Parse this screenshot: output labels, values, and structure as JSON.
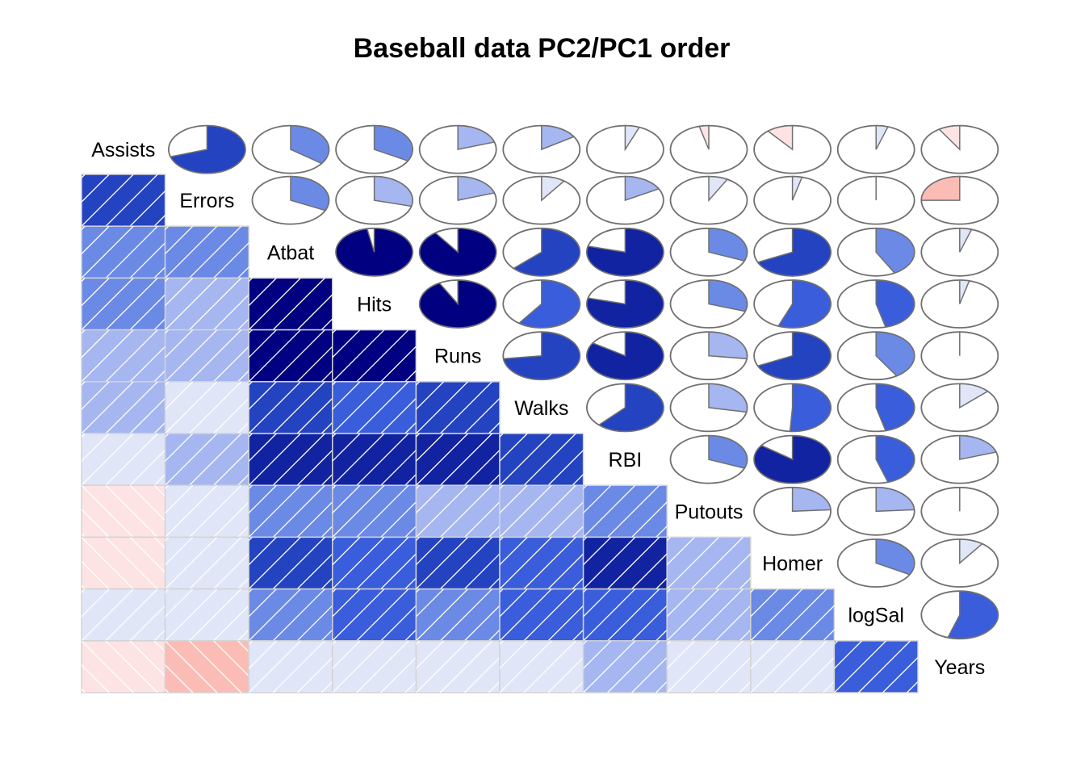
{
  "chart_data": {
    "type": "heatmap",
    "title": "Baseball data PC2/PC1 order",
    "variables": [
      "Assists",
      "Errors",
      "Atbat",
      "Hits",
      "Runs",
      "Walks",
      "RBI",
      "Putouts",
      "Homer",
      "logSal",
      "Years"
    ],
    "lower_panel": "shade",
    "upper_panel": "pie",
    "correlations": [
      [
        1.0,
        0.7,
        0.35,
        0.33,
        0.2,
        0.16,
        0.06,
        -0.04,
        -0.11,
        0.05,
        -0.09
      ],
      [
        0.7,
        1.0,
        0.32,
        0.29,
        0.2,
        0.1,
        0.17,
        0.08,
        0.04,
        0.0,
        -0.25
      ],
      [
        0.35,
        0.32,
        1.0,
        0.97,
        0.9,
        0.63,
        0.79,
        0.31,
        0.68,
        0.42,
        0.05
      ],
      [
        0.33,
        0.29,
        0.97,
        1.0,
        0.92,
        0.6,
        0.79,
        0.3,
        0.56,
        0.46,
        0.04
      ],
      [
        0.2,
        0.2,
        0.9,
        0.92,
        1.0,
        0.73,
        0.84,
        0.27,
        0.68,
        0.41,
        0.0
      ],
      [
        0.16,
        0.1,
        0.63,
        0.6,
        0.73,
        1.0,
        0.62,
        0.28,
        0.51,
        0.46,
        0.13
      ],
      [
        0.06,
        0.17,
        0.79,
        0.79,
        0.84,
        0.62,
        1.0,
        0.31,
        0.85,
        0.45,
        0.2
      ],
      [
        -0.04,
        0.08,
        0.31,
        0.3,
        0.27,
        0.28,
        0.31,
        1.0,
        0.24,
        0.24,
        0.0
      ],
      [
        -0.11,
        0.04,
        0.68,
        0.56,
        0.68,
        0.51,
        0.85,
        0.24,
        1.0,
        0.33,
        0.1
      ],
      [
        0.05,
        0.0,
        0.42,
        0.46,
        0.41,
        0.46,
        0.45,
        0.24,
        0.33,
        1.0,
        0.55
      ],
      [
        -0.09,
        -0.25,
        0.05,
        0.04,
        0.0,
        0.13,
        0.2,
        0.0,
        0.1,
        0.55,
        1.0
      ]
    ],
    "colors": {
      "strong_positive": "#000080",
      "positive": "#2343c1",
      "mid_positive": "#6b8ae6",
      "weak_positive": "#a5b6f0",
      "faint_positive": "#e0e6f8",
      "faint_negative": "#fde3e3",
      "weak_negative": "#fbbcb5",
      "cell_border": "#d3d3d3",
      "pie_border": "#707070"
    }
  }
}
